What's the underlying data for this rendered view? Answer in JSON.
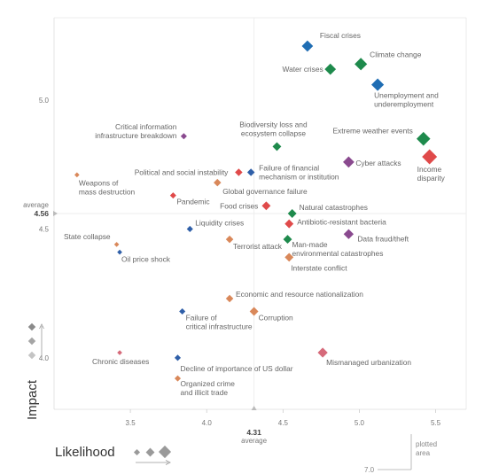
{
  "chart_data": {
    "type": "scatter",
    "title": "",
    "xlabel": "Likelihood",
    "ylabel": "Impact",
    "xlim": [
      3.0,
      5.7
    ],
    "ylim": [
      3.8,
      5.32
    ],
    "x_ticks": [
      "3.5",
      "4.0",
      "4.5",
      "5.0",
      "5.5"
    ],
    "y_ticks": [
      "5.0",
      "4.5",
      "4.0"
    ],
    "grid": false,
    "average": {
      "x": 4.31,
      "y": 4.56,
      "x_label": "4.31",
      "y_label": "4.56",
      "word": "average"
    },
    "colors": {
      "economic": "#1f6db3",
      "environmental": "#1e8a4c",
      "geopolitical": "#d9885a",
      "societal": "#8a4a8f",
      "technological": "#2f5fa8",
      "red": "#e04a4a",
      "pink": "#d66a7a"
    },
    "points": [
      {
        "label": "Fiscal crises",
        "x": 4.66,
        "y": 5.21,
        "size": 9,
        "color": "#1f6db3"
      },
      {
        "label": "Water crises",
        "x": 4.81,
        "y": 5.12,
        "size": 9,
        "color": "#1e8a4c"
      },
      {
        "label": "Climate change",
        "x": 5.01,
        "y": 5.14,
        "size": 10,
        "color": "#1e8a4c"
      },
      {
        "label": "Unemployment and\nunderemployment",
        "x": 5.12,
        "y": 5.06,
        "size": 10,
        "color": "#1f6db3"
      },
      {
        "label": "Critical information\ninfrastructure breakdown",
        "x": 3.85,
        "y": 4.86,
        "size": 5,
        "color": "#8a4a8f"
      },
      {
        "label": "Biodiversity loss and\necosystem collapse",
        "x": 4.46,
        "y": 4.82,
        "size": 7,
        "color": "#1e8a4c"
      },
      {
        "label": "Extreme weather events",
        "x": 5.42,
        "y": 4.85,
        "size": 11,
        "color": "#1e8a4c"
      },
      {
        "label": "Cyber attacks",
        "x": 4.93,
        "y": 4.76,
        "size": 9,
        "color": "#8a4a8f"
      },
      {
        "label": "Income\ndisparity",
        "x": 5.46,
        "y": 4.78,
        "size": 12,
        "color": "#e04a4a"
      },
      {
        "label": "Weapons of\nmass destruction",
        "x": 3.15,
        "y": 4.71,
        "size": 4,
        "color": "#d9885a"
      },
      {
        "label": "Political and social instability",
        "x": 4.21,
        "y": 4.72,
        "size": 6,
        "color": "#e04a4a"
      },
      {
        "label": "Failure of financial\nmechanism or institution",
        "x": 4.29,
        "y": 4.72,
        "size": 6,
        "color": "#2f5fa8"
      },
      {
        "label": "Global governance failure",
        "x": 4.07,
        "y": 4.68,
        "size": 6,
        "color": "#d9885a"
      },
      {
        "label": "Pandemic",
        "x": 3.78,
        "y": 4.63,
        "size": 5,
        "color": "#e04a4a"
      },
      {
        "label": "Food crises",
        "x": 4.39,
        "y": 4.59,
        "size": 7,
        "color": "#e04a4a"
      },
      {
        "label": "Natural catastrophes",
        "x": 4.56,
        "y": 4.56,
        "size": 7,
        "color": "#1e8a4c"
      },
      {
        "label": "Antibiotic-resistant bacteria",
        "x": 4.54,
        "y": 4.52,
        "size": 7,
        "color": "#e04a4a"
      },
      {
        "label": "Data fraud/theft",
        "x": 4.93,
        "y": 4.48,
        "size": 8,
        "color": "#8a4a8f"
      },
      {
        "label": "Liquidity crises",
        "x": 3.89,
        "y": 4.5,
        "size": 5,
        "color": "#2f5fa8"
      },
      {
        "label": "Man-made\nenvironmental catastrophes",
        "x": 4.53,
        "y": 4.46,
        "size": 7,
        "color": "#1e8a4c"
      },
      {
        "label": "Terrorist attack",
        "x": 4.15,
        "y": 4.46,
        "size": 6,
        "color": "#d9885a"
      },
      {
        "label": "State collapse",
        "x": 3.41,
        "y": 4.44,
        "size": 4,
        "color": "#d9885a"
      },
      {
        "label": "Oil price shock",
        "x": 3.43,
        "y": 4.41,
        "size": 4,
        "color": "#2f5fa8"
      },
      {
        "label": "Interstate conflict",
        "x": 4.54,
        "y": 4.39,
        "size": 7,
        "color": "#d9885a"
      },
      {
        "label": "Economic and resource nationalization",
        "x": 4.15,
        "y": 4.23,
        "size": 6,
        "color": "#d9885a"
      },
      {
        "label": "Corruption",
        "x": 4.31,
        "y": 4.18,
        "size": 7,
        "color": "#d9885a"
      },
      {
        "label": "Failure of\ncritical infrastructure",
        "x": 3.84,
        "y": 4.18,
        "size": 5,
        "color": "#2f5fa8"
      },
      {
        "label": "Chronic diseases",
        "x": 3.43,
        "y": 4.02,
        "size": 4,
        "color": "#d66a7a"
      },
      {
        "label": "Decline of importance of US dollar",
        "x": 3.81,
        "y": 4.0,
        "size": 5,
        "color": "#2f5fa8"
      },
      {
        "label": "Mismanaged urbanization",
        "x": 4.76,
        "y": 4.02,
        "size": 8,
        "color": "#d66a7a"
      },
      {
        "label": "Organized crime\nand illicit trade",
        "x": 3.81,
        "y": 3.92,
        "size": 5,
        "color": "#d9885a"
      }
    ]
  },
  "legend": {
    "plotted_area": "plotted\narea",
    "max_tick": "7.0"
  }
}
